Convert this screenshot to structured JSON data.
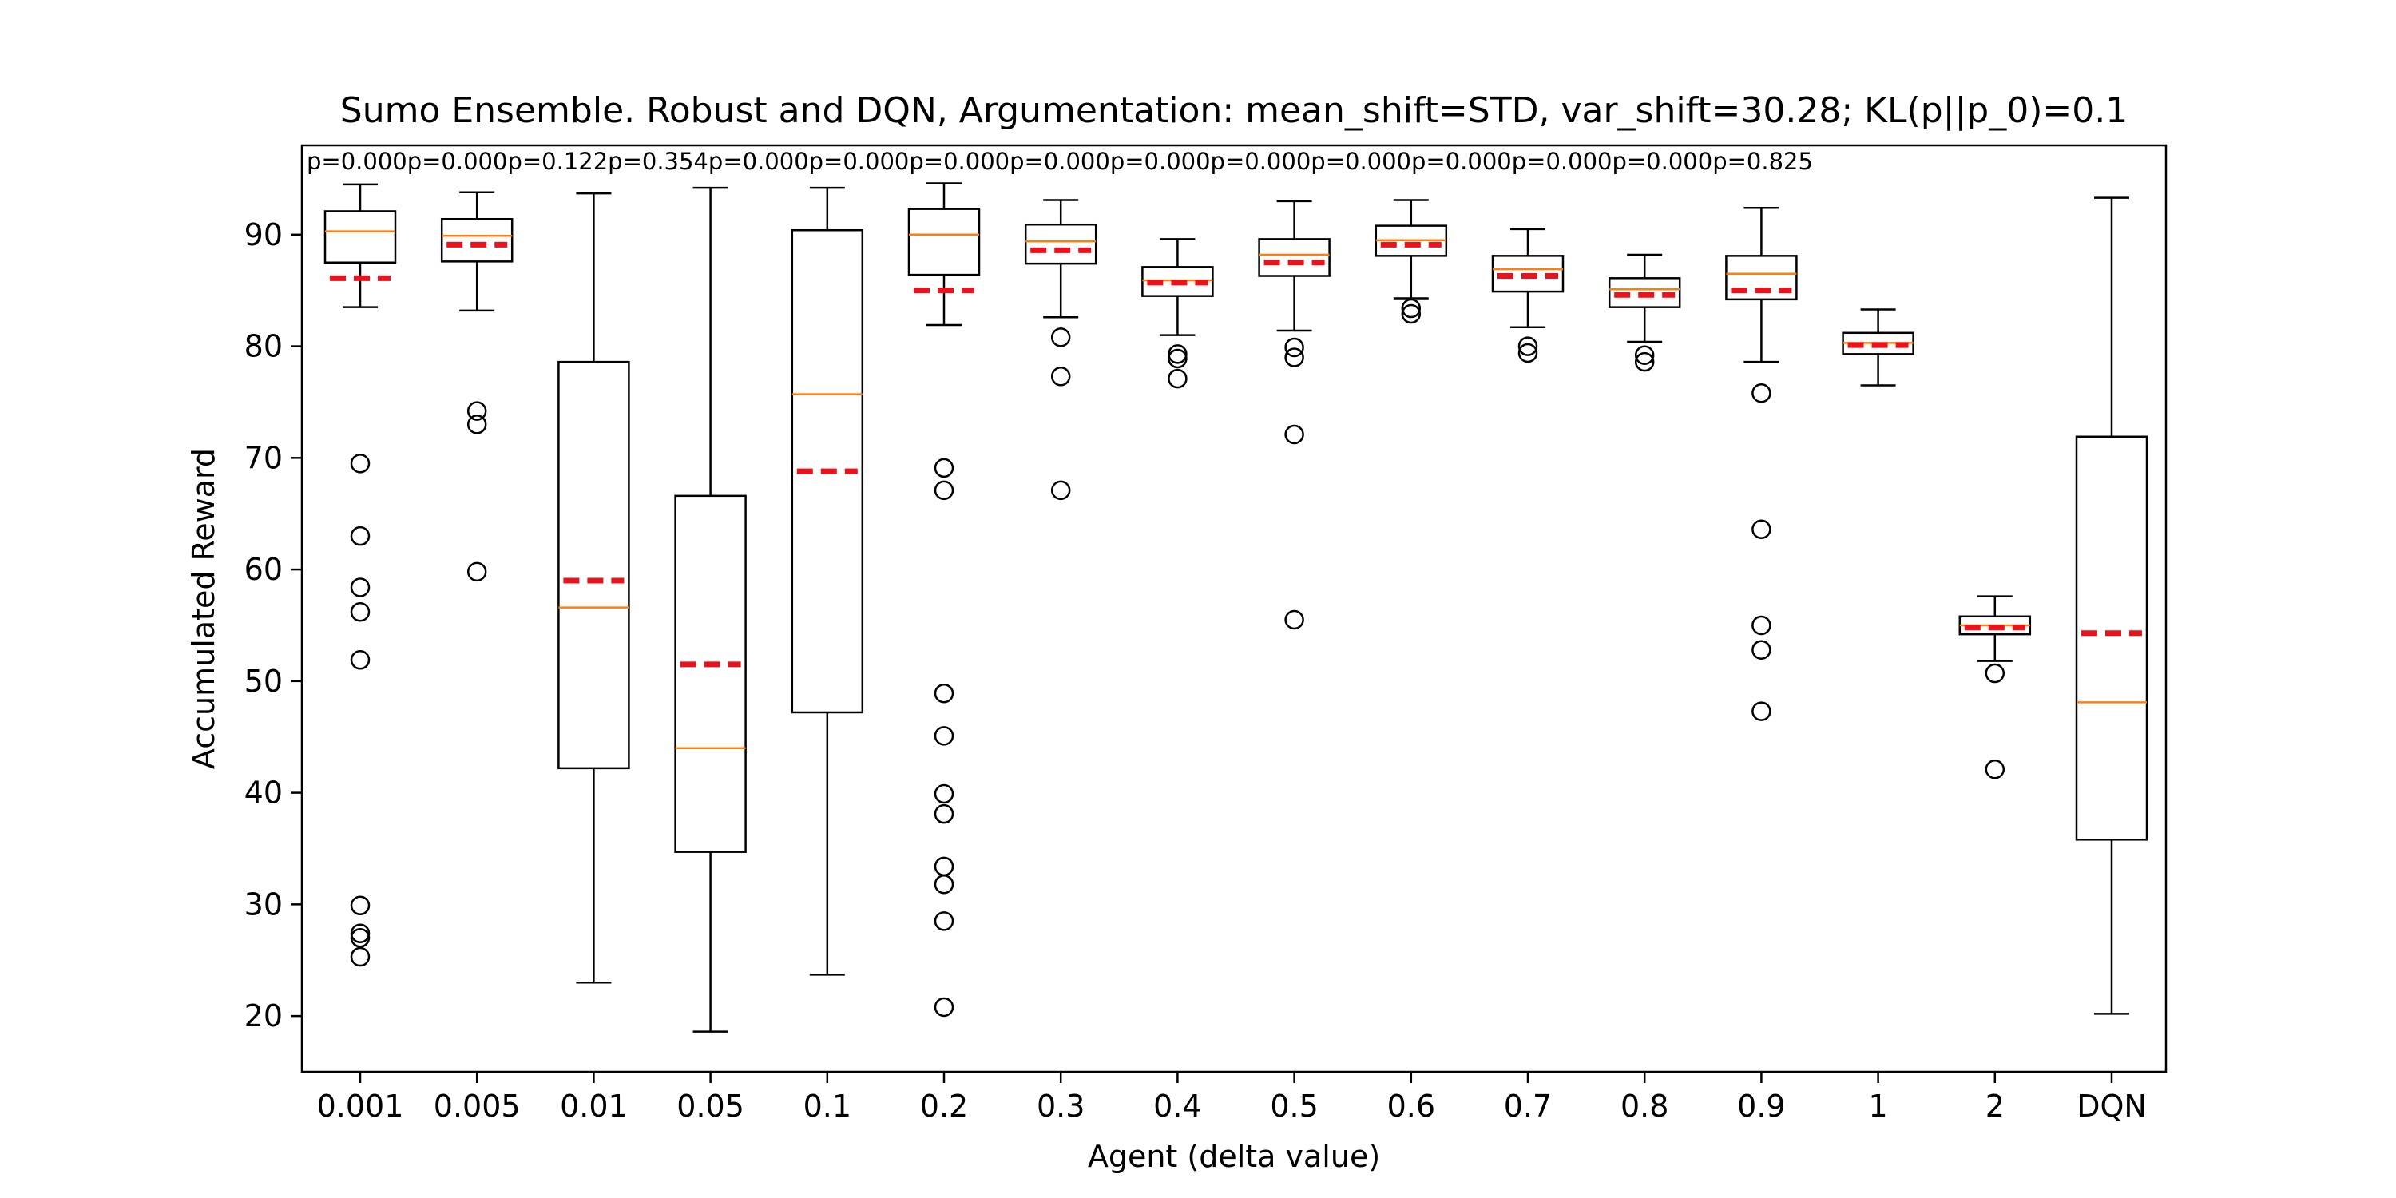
{
  "chart_data": {
    "type": "box",
    "title": "Sumo Ensemble. Robust and DQN, Argumentation: mean_shift=STD, var_shift=30.28; KL(p||p_0)=0.1",
    "xlabel": "Agent (delta value)",
    "ylabel": "Accumulated Reward",
    "ylim": [
      15,
      98
    ],
    "yticks": [
      20,
      30,
      40,
      50,
      60,
      70,
      80,
      90
    ],
    "categories": [
      "0.001",
      "0.005",
      "0.01",
      "0.05",
      "0.1",
      "0.2",
      "0.3",
      "0.4",
      "0.5",
      "0.6",
      "0.7",
      "0.8",
      "0.9",
      "1",
      "2",
      "DQN"
    ],
    "p_values": [
      "p=0.000",
      "p=0.000",
      "p=0.122",
      "p=0.354",
      "p=0.000",
      "p=0.000",
      "p=0.000",
      "p=0.000",
      "p=0.000",
      "p=0.000",
      "p=0.000",
      "p=0.000",
      "p=0.000",
      "p=0.000",
      "p=0.825"
    ],
    "colors": {
      "box": "#000000",
      "median": "#ff7f0e",
      "mean": "#e8131c"
    },
    "boxes": [
      {
        "label": "0.001",
        "whisker_low": 83.5,
        "q1": 87.5,
        "median": 90.3,
        "q3": 92.1,
        "whisker_high": 94.5,
        "mean": 86.1,
        "outliers": [
          69.5,
          63.0,
          58.4,
          56.2,
          51.9,
          29.9,
          27.4,
          27.0,
          25.3
        ]
      },
      {
        "label": "0.005",
        "whisker_low": 83.2,
        "q1": 87.6,
        "median": 89.9,
        "q3": 91.4,
        "whisker_high": 93.8,
        "mean": 89.1,
        "outliers": [
          74.2,
          73.0,
          59.8
        ]
      },
      {
        "label": "0.01",
        "whisker_low": 23.0,
        "q1": 42.2,
        "median": 56.6,
        "q3": 78.6,
        "whisker_high": 93.7,
        "mean": 59.0,
        "outliers": []
      },
      {
        "label": "0.05",
        "whisker_low": 18.6,
        "q1": 34.7,
        "median": 44.0,
        "q3": 66.6,
        "whisker_high": 94.2,
        "mean": 51.5,
        "outliers": []
      },
      {
        "label": "0.1",
        "whisker_low": 23.7,
        "q1": 47.2,
        "median": 75.7,
        "q3": 90.4,
        "whisker_high": 94.2,
        "mean": 68.8,
        "outliers": []
      },
      {
        "label": "0.2",
        "whisker_low": 81.9,
        "q1": 86.4,
        "median": 90.0,
        "q3": 92.3,
        "whisker_high": 94.6,
        "mean": 85.0,
        "outliers": [
          69.1,
          67.1,
          48.9,
          45.1,
          39.9,
          38.1,
          33.4,
          31.8,
          28.5,
          20.8
        ]
      },
      {
        "label": "0.3",
        "whisker_low": 82.6,
        "q1": 87.4,
        "median": 89.4,
        "q3": 90.9,
        "whisker_high": 93.1,
        "mean": 88.6,
        "outliers": [
          80.8,
          77.3,
          67.1
        ]
      },
      {
        "label": "0.4",
        "whisker_low": 81.0,
        "q1": 84.5,
        "median": 85.9,
        "q3": 87.1,
        "whisker_high": 89.6,
        "mean": 85.7,
        "outliers": [
          79.3,
          78.9,
          77.1
        ]
      },
      {
        "label": "0.5",
        "whisker_low": 81.4,
        "q1": 86.3,
        "median": 88.2,
        "q3": 89.6,
        "whisker_high": 93.0,
        "mean": 87.5,
        "outliers": [
          79.9,
          79.0,
          72.1,
          55.5
        ]
      },
      {
        "label": "0.6",
        "whisker_low": 84.3,
        "q1": 88.1,
        "median": 89.5,
        "q3": 90.8,
        "whisker_high": 93.1,
        "mean": 89.1,
        "outliers": [
          83.4,
          82.9
        ]
      },
      {
        "label": "0.7",
        "whisker_low": 81.7,
        "q1": 84.9,
        "median": 86.9,
        "q3": 88.1,
        "whisker_high": 90.5,
        "mean": 86.3,
        "outliers": [
          80.0,
          79.4
        ]
      },
      {
        "label": "0.8",
        "whisker_low": 80.4,
        "q1": 83.5,
        "median": 85.1,
        "q3": 86.1,
        "whisker_high": 88.2,
        "mean": 84.6,
        "outliers": [
          79.2,
          78.6
        ]
      },
      {
        "label": "0.9",
        "whisker_low": 78.6,
        "q1": 84.2,
        "median": 86.5,
        "q3": 88.1,
        "whisker_high": 92.4,
        "mean": 85.0,
        "outliers": [
          75.8,
          63.6,
          55.0,
          52.8,
          47.3
        ]
      },
      {
        "label": "1",
        "whisker_low": 76.5,
        "q1": 79.3,
        "median": 80.3,
        "q3": 81.2,
        "whisker_high": 83.3,
        "mean": 80.1,
        "outliers": []
      },
      {
        "label": "2",
        "whisker_low": 51.8,
        "q1": 54.2,
        "median": 55.0,
        "q3": 55.8,
        "whisker_high": 57.6,
        "mean": 54.8,
        "outliers": [
          50.7,
          42.1
        ]
      },
      {
        "label": "DQN",
        "whisker_low": 20.2,
        "q1": 35.8,
        "median": 48.1,
        "q3": 71.9,
        "whisker_high": 93.3,
        "mean": 54.3,
        "outliers": []
      }
    ]
  }
}
